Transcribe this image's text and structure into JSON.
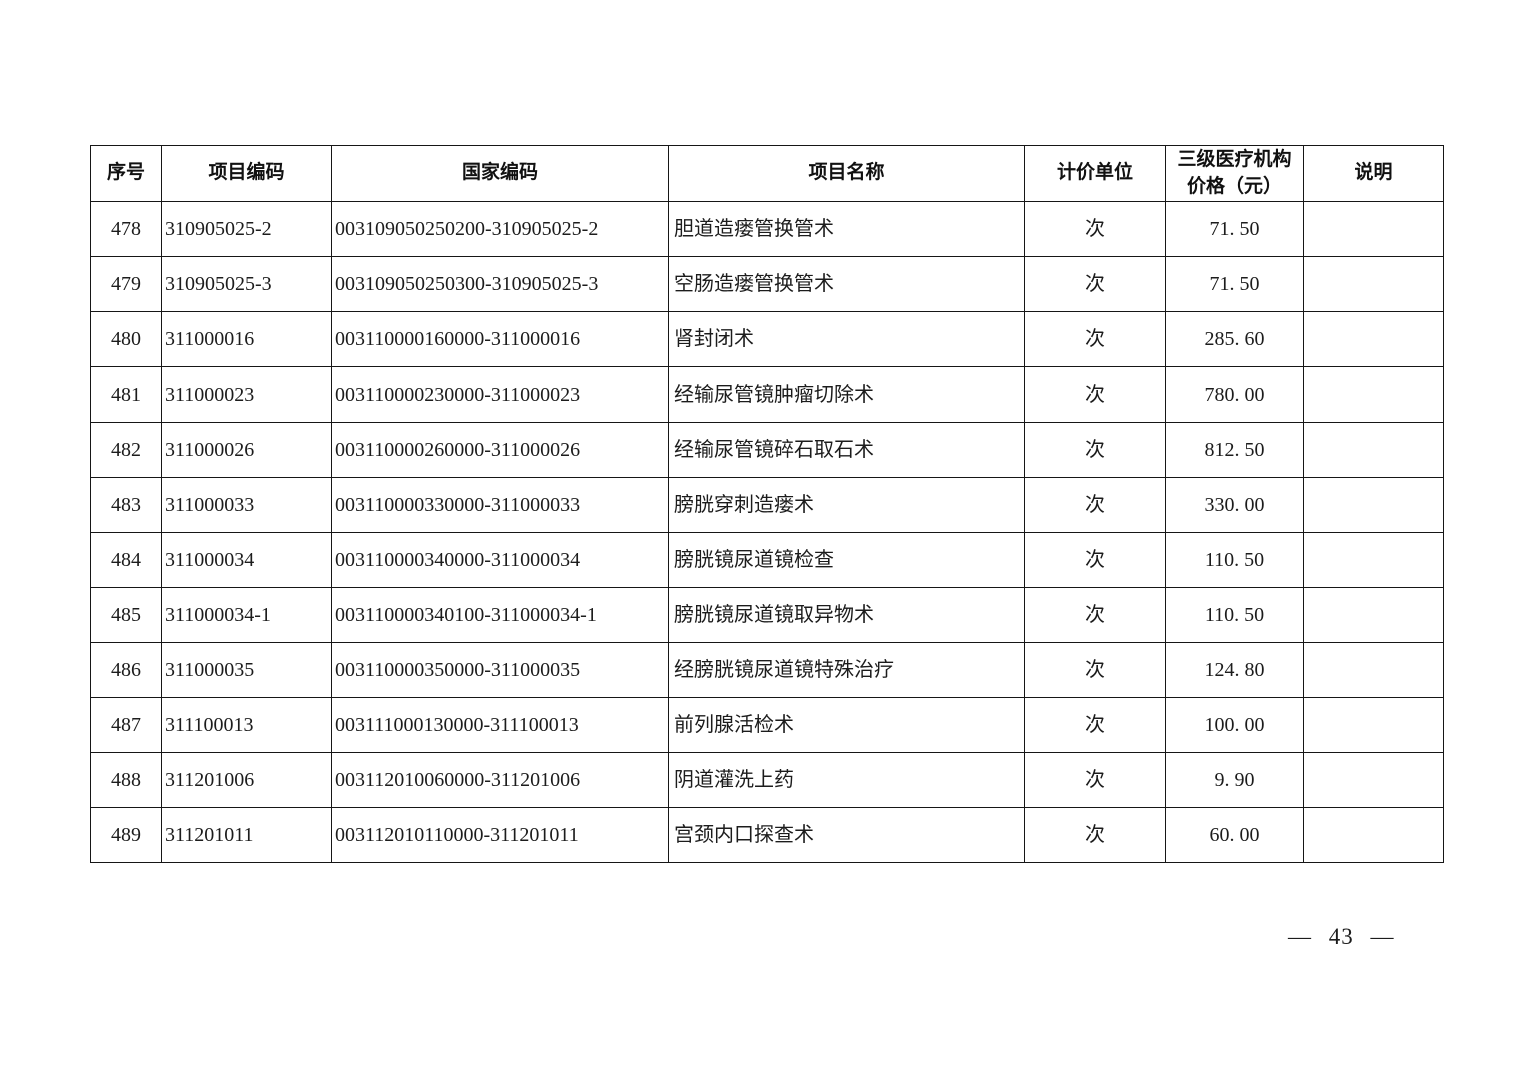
{
  "document": {
    "page_number_text": "— 43 —"
  },
  "colors": {
    "background": "#ffffff",
    "text": "#1a1a1a",
    "border": "#161616"
  },
  "table": {
    "headers": [
      "序号",
      "项目编码",
      "国家编码",
      "项目名称",
      "计价单位",
      "三级医疗机构\n价格（元）",
      "说明"
    ],
    "rows": [
      {
        "seq": "478",
        "project_code": "310905025-2",
        "national_code": "003109050250200-310905025-2",
        "name": "胆道造瘘管换管术",
        "unit": "次",
        "price": "71. 50",
        "note": ""
      },
      {
        "seq": "479",
        "project_code": "310905025-3",
        "national_code": "003109050250300-310905025-3",
        "name": "空肠造瘘管换管术",
        "unit": "次",
        "price": "71. 50",
        "note": ""
      },
      {
        "seq": "480",
        "project_code": "311000016",
        "national_code": "003110000160000-311000016",
        "name": "肾封闭术",
        "unit": "次",
        "price": "285. 60",
        "note": ""
      },
      {
        "seq": "481",
        "project_code": "311000023",
        "national_code": "003110000230000-311000023",
        "name": "经输尿管镜肿瘤切除术",
        "unit": "次",
        "price": "780. 00",
        "note": ""
      },
      {
        "seq": "482",
        "project_code": "311000026",
        "national_code": "003110000260000-311000026",
        "name": "经输尿管镜碎石取石术",
        "unit": "次",
        "price": "812. 50",
        "note": ""
      },
      {
        "seq": "483",
        "project_code": "311000033",
        "national_code": "003110000330000-311000033",
        "name": "膀胱穿刺造瘘术",
        "unit": "次",
        "price": "330. 00",
        "note": ""
      },
      {
        "seq": "484",
        "project_code": "311000034",
        "national_code": "003110000340000-311000034",
        "name": "膀胱镜尿道镜检查",
        "unit": "次",
        "price": "110. 50",
        "note": ""
      },
      {
        "seq": "485",
        "project_code": "311000034-1",
        "national_code": "003110000340100-311000034-1",
        "name": "膀胱镜尿道镜取异物术",
        "unit": "次",
        "price": "110. 50",
        "note": ""
      },
      {
        "seq": "486",
        "project_code": "311000035",
        "national_code": "003110000350000-311000035",
        "name": "经膀胱镜尿道镜特殊治疗",
        "unit": "次",
        "price": "124. 80",
        "note": ""
      },
      {
        "seq": "487",
        "project_code": "311100013",
        "national_code": "003111000130000-311100013",
        "name": "前列腺活检术",
        "unit": "次",
        "price": "100. 00",
        "note": ""
      },
      {
        "seq": "488",
        "project_code": "311201006",
        "national_code": "003112010060000-311201006",
        "name": "阴道灌洗上药",
        "unit": "次",
        "price": "9. 90",
        "note": ""
      },
      {
        "seq": "489",
        "project_code": "311201011",
        "national_code": "003112010110000-311201011",
        "name": "宫颈内口探查术",
        "unit": "次",
        "price": "60. 00",
        "note": ""
      }
    ]
  }
}
